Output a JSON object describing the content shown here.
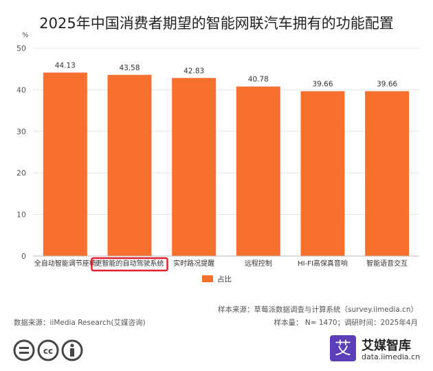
{
  "chart_data": {
    "type": "bar",
    "title": "2025年中国消费者期望的智能网联汽车拥有的功能配置",
    "ylabel": "%",
    "ylim": [
      0,
      50
    ],
    "yticks": [
      0,
      10,
      20,
      30,
      40,
      50
    ],
    "categories": [
      "全自动智能调节座椅",
      "更智能的自动驾驶系统",
      "实时路况提醒",
      "远程控制",
      "HI-FI高保真音响",
      "智能语音交互"
    ],
    "series": [
      {
        "name": "占比",
        "values": [
          44.13,
          43.58,
          42.83,
          40.78,
          39.66,
          39.66
        ]
      }
    ],
    "data_labels": [
      "44.13",
      "43.58",
      "42.83",
      "40.78",
      "39.66",
      "39.66"
    ],
    "legend_position": "bottom",
    "grid": true,
    "highlighted_category": "更智能的自动驾驶系统",
    "bar_color": "#f7702e",
    "highlight_box_color": "#e0202c"
  },
  "notes": {
    "sample_source": "样本来源：草莓派数据调查与计算系统（survey.iimedia.cn）",
    "sample_size": "样本量： N= 1470；调研时间：2025年4月",
    "data_source": "数据来源：iiMedia Research(艾媒咨询)"
  },
  "brand": {
    "logo_char": "艾",
    "name": "艾媒智库",
    "url": "data.iimedia.cn"
  },
  "icons": [
    "equal-icon",
    "cc-icon",
    "person-icon"
  ]
}
